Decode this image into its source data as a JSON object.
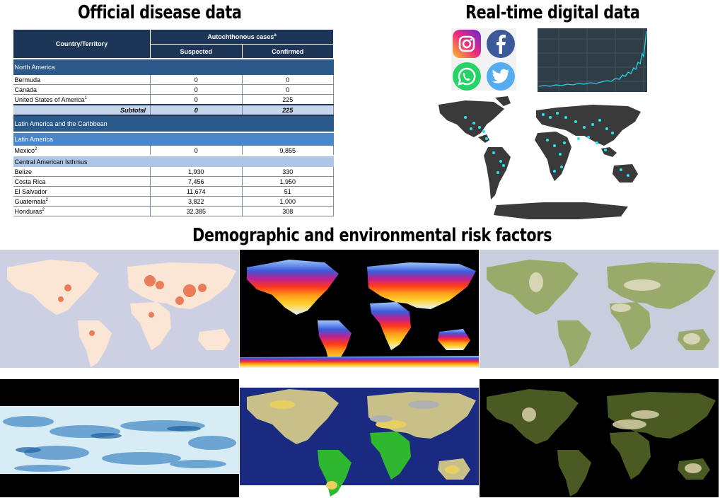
{
  "headings": {
    "official": "Official disease data",
    "realtime": "Real-time digital data",
    "risk": "Demographic and environmental risk factors"
  },
  "table": {
    "col_country": "Country/Territory",
    "col_group": "Autochthonous cases",
    "col_group_sup": "a",
    "col_suspected": "Suspected",
    "col_confirmed": "Confirmed",
    "sections": {
      "north_america": "North America",
      "latin_caribbean": "Latin America and the Caribbean",
      "latin_america": "Latin America",
      "central_american_isthmus": "Central American Isthmus"
    },
    "north_america_rows": [
      {
        "country": "Bermuda",
        "sup": "",
        "suspected": "0",
        "confirmed": "0"
      },
      {
        "country": "Canada",
        "sup": "",
        "suspected": "0",
        "confirmed": "0"
      },
      {
        "country": "United States of America",
        "sup": "1",
        "suspected": "0",
        "confirmed": "225"
      }
    ],
    "subtotal": {
      "label": "Subtotal",
      "suspected": "0",
      "confirmed": "225"
    },
    "mexico_row": {
      "country": "Mexico",
      "sup": "2",
      "suspected": "0",
      "confirmed": "9,855"
    },
    "central_rows": [
      {
        "country": "Belize",
        "sup": "",
        "suspected": "1,930",
        "confirmed": "330"
      },
      {
        "country": "Costa Rica",
        "sup": "",
        "suspected": "7,456",
        "confirmed": "1,950"
      },
      {
        "country": "El Salvador",
        "sup": "",
        "suspected": "11,674",
        "confirmed": "51"
      },
      {
        "country": "Guatemala",
        "sup": "2",
        "suspected": "3,822",
        "confirmed": "1,000"
      },
      {
        "country": "Honduras",
        "sup": "2",
        "suspected": "32,385",
        "confirmed": "308"
      }
    ]
  },
  "social_icons": [
    "instagram-icon",
    "facebook-icon",
    "whatsapp-icon",
    "twitter-icon"
  ],
  "colors": {
    "table_header": "#1d3557",
    "region_row": "#2b5a8a",
    "chart_line": "#27d3e6",
    "map_land": "#3a3a3a",
    "map_points": "#27e6f0"
  }
}
